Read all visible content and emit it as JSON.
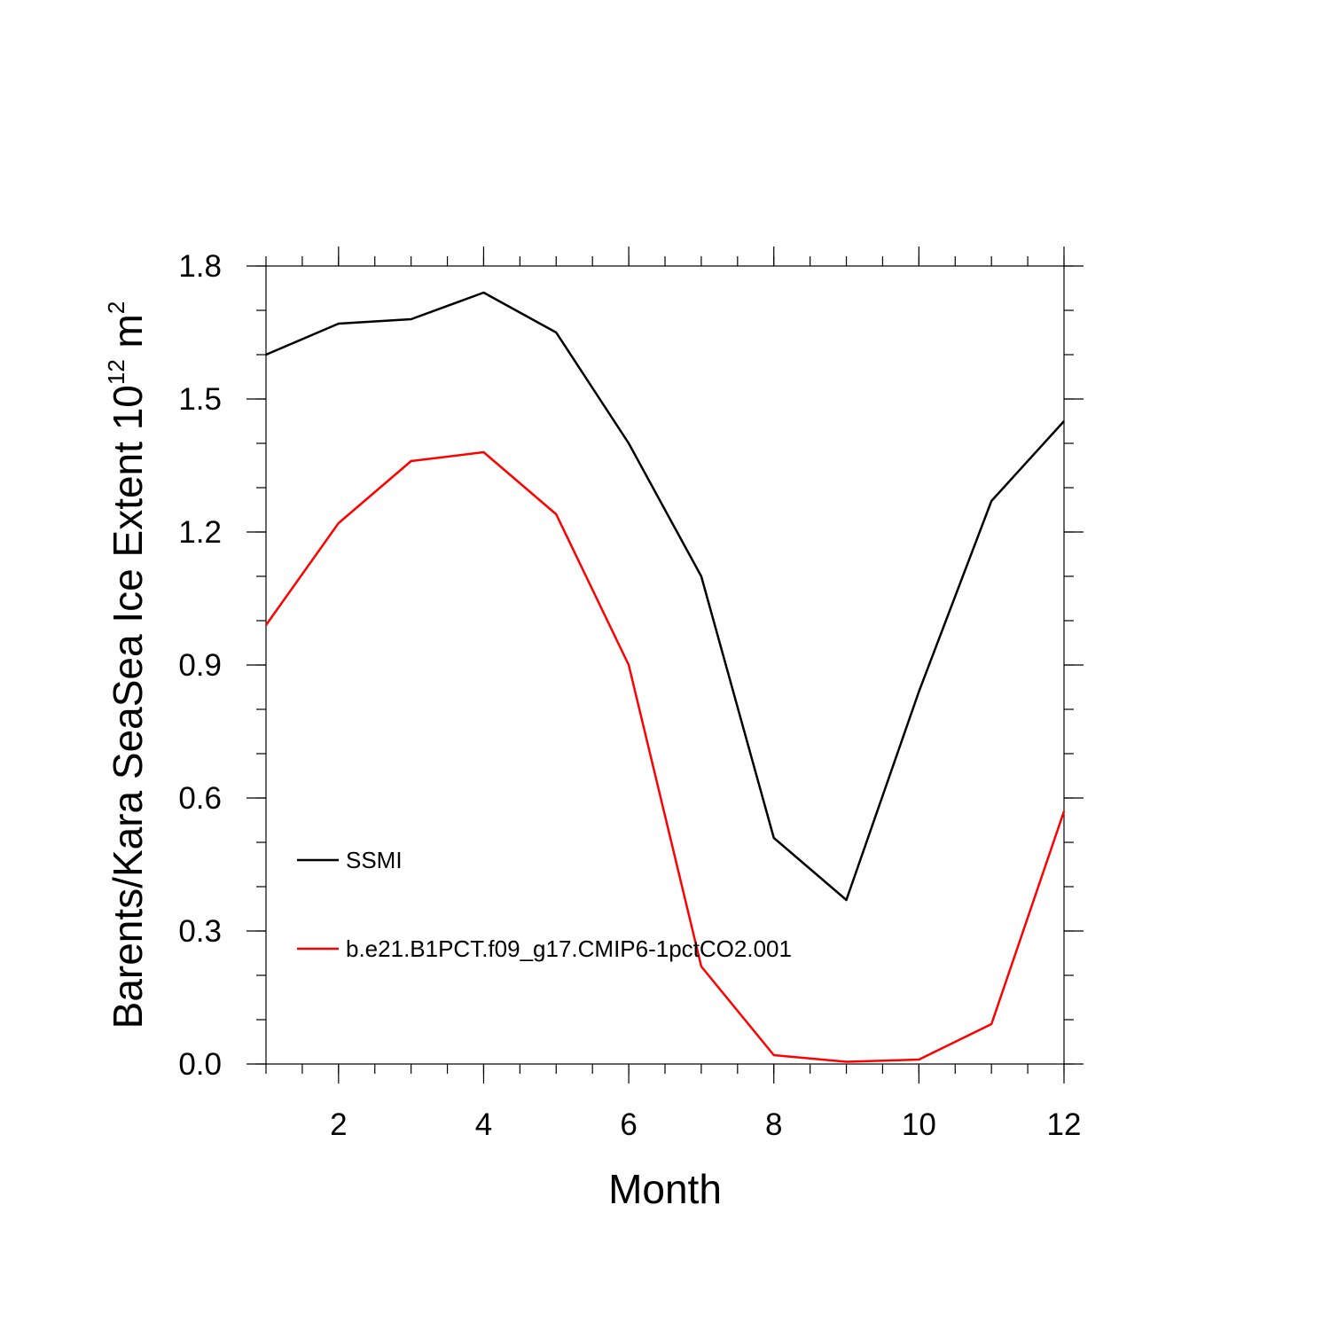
{
  "chart_data": {
    "type": "line",
    "xlabel": "Month",
    "ylabel": "Barents/Kara SeaSea Ice Extent 10",
    "ylabel_exponent": "12",
    "ylabel_unit": " m",
    "ylabel_unit_exponent": "2",
    "xlim": [
      1,
      12
    ],
    "ylim": [
      0.0,
      1.8
    ],
    "x_ticks": [
      2,
      4,
      6,
      8,
      10,
      12
    ],
    "x_tick_labels": [
      "2",
      "4",
      "6",
      "8",
      "10",
      "12"
    ],
    "x_minor_step": 0.5,
    "y_ticks": [
      0.0,
      0.3,
      0.6,
      0.9,
      1.2,
      1.5,
      1.8
    ],
    "y_tick_labels": [
      "0.0",
      "0.3",
      "0.6",
      "0.9",
      "1.2",
      "1.5",
      "1.8"
    ],
    "y_minor_step": 0.1,
    "grid": false,
    "legend_position": "lower-left inside",
    "x": [
      1,
      2,
      3,
      4,
      5,
      6,
      7,
      8,
      9,
      10,
      11,
      12
    ],
    "series": [
      {
        "name": "SSMI",
        "color": "#000000",
        "values": [
          1.6,
          1.67,
          1.68,
          1.74,
          1.65,
          1.4,
          1.1,
          0.51,
          0.37,
          0.84,
          1.27,
          1.45
        ]
      },
      {
        "name": "b.e21.B1PCT.f09_g17.CMIP6-1pctCO2.001",
        "color": "#ff0000",
        "values": [
          0.99,
          1.22,
          1.36,
          1.38,
          1.24,
          0.9,
          0.22,
          0.02,
          0.005,
          0.01,
          0.09,
          0.57
        ]
      }
    ]
  }
}
